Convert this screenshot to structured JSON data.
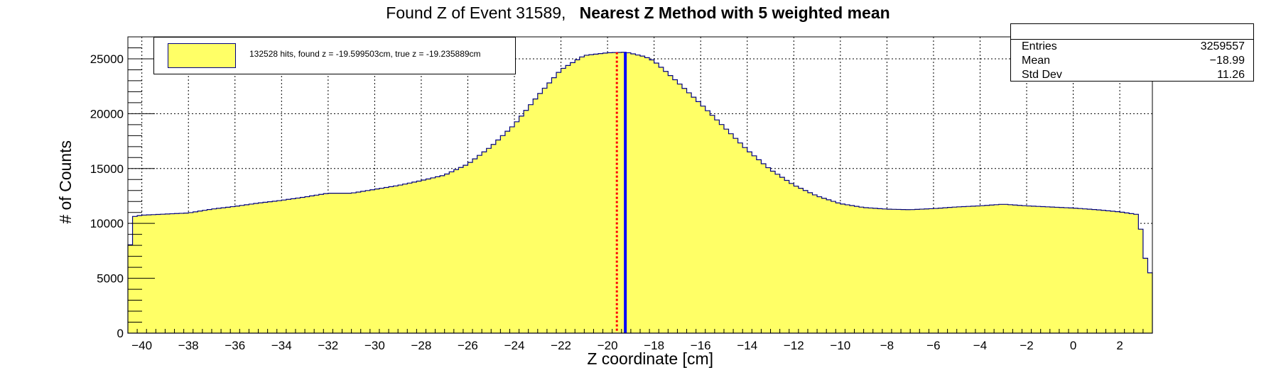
{
  "title": {
    "normal": "Found Z of Event 31589,",
    "bold": "Nearest Z Method with 5 weighted mean"
  },
  "legend": {
    "entry": "132528 hits, found z = -19.599503cm, true z = -19.235889cm"
  },
  "stats": {
    "rows": [
      {
        "label": "Entries",
        "value": "3259557"
      },
      {
        "label": "Mean",
        "value": "−18.99"
      },
      {
        "label": "Std Dev",
        "value": "11.26"
      }
    ]
  },
  "colors": {
    "fill": "#ffff66",
    "outline": "#000080",
    "found_line": "#ff0000",
    "true_line": "#0000ff"
  },
  "chart_data": {
    "type": "bar",
    "xlabel": "Z coordinate [cm]",
    "ylabel": "# of Counts",
    "xlim": [
      -40.6,
      3.4
    ],
    "ylim": [
      0,
      27000
    ],
    "x_ticks": [
      -40,
      -38,
      -36,
      -34,
      -32,
      -30,
      -28,
      -26,
      -24,
      -22,
      -20,
      -18,
      -16,
      -14,
      -12,
      -10,
      -8,
      -6,
      -4,
      -2,
      0,
      2
    ],
    "y_ticks": [
      0,
      5000,
      10000,
      15000,
      20000,
      25000
    ],
    "grid": true,
    "legend_position": "top-left",
    "histogram_profile": {
      "x": [
        -40.6,
        -40.4,
        -40.0,
        -39.0,
        -38.0,
        -37.0,
        -36.0,
        -35.0,
        -34.0,
        -33.0,
        -32.0,
        -31.0,
        -30.0,
        -29.0,
        -28.0,
        -27.0,
        -26.0,
        -25.0,
        -24.0,
        -23.0,
        -22.0,
        -21.0,
        -20.0,
        -19.2,
        -18.4,
        -18.0,
        -17.0,
        -16.0,
        -15.0,
        -14.0,
        -13.0,
        -12.0,
        -11.0,
        -10.0,
        -9.0,
        -8.0,
        -7.0,
        -6.0,
        -5.0,
        -4.0,
        -3.0,
        -2.0,
        -1.0,
        0.0,
        1.0,
        2.0,
        2.8,
        3.2,
        3.4
      ],
      "y": [
        5500,
        10600,
        10750,
        10850,
        10950,
        11300,
        11550,
        11850,
        12100,
        12400,
        12750,
        12750,
        13100,
        13450,
        13900,
        14400,
        15400,
        17000,
        19000,
        21600,
        24000,
        25300,
        25550,
        25600,
        25200,
        24800,
        22900,
        20900,
        18800,
        16700,
        14900,
        13500,
        12500,
        11800,
        11450,
        11300,
        11250,
        11350,
        11500,
        11600,
        11750,
        11600,
        11500,
        11400,
        11250,
        11050,
        10800,
        5500,
        5500
      ]
    },
    "bin_width": 0.2,
    "vertical_lines": [
      {
        "x": -19.599503,
        "style": "dotted",
        "color": "#ff0000"
      },
      {
        "x": -19.235889,
        "style": "solid",
        "color": "#0000ff"
      }
    ]
  }
}
